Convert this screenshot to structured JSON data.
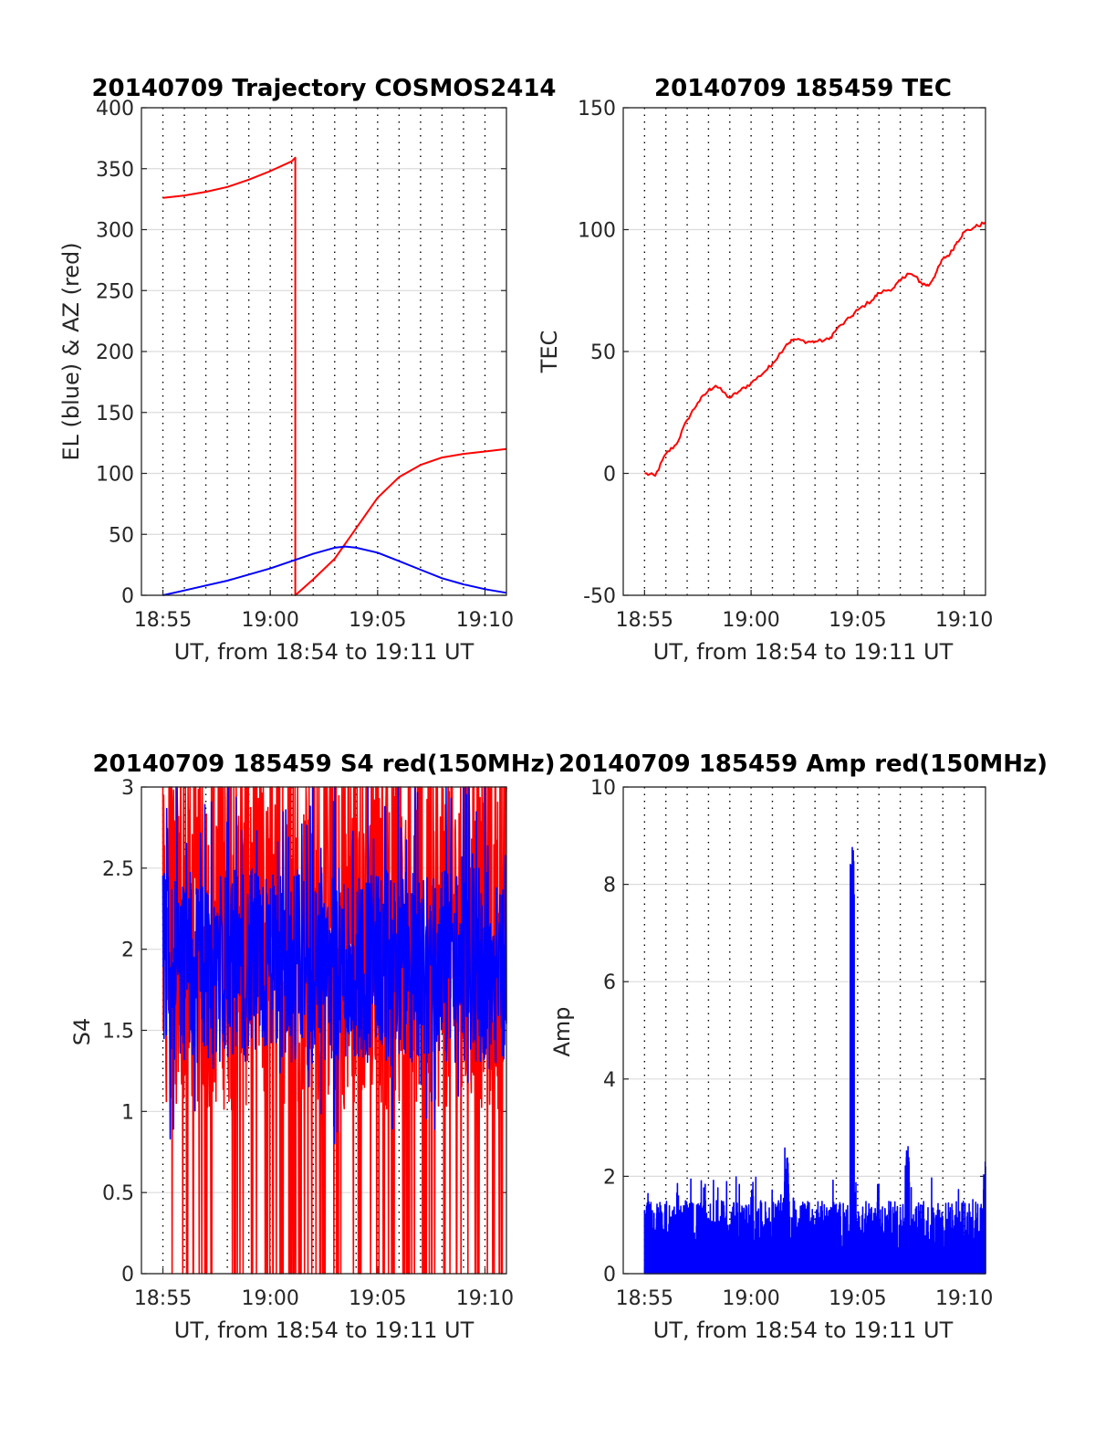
{
  "chart_data": [
    {
      "id": "trajectory",
      "type": "line",
      "title": "20140709 Trajectory COSMOS2414",
      "xlabel": "UT, from 18:54 to 19:11 UT",
      "ylabel": "EL (blue) & AZ (red)",
      "x_ticks": [
        "18:55",
        "19:00",
        "19:05",
        "19:10"
      ],
      "y_ticks": [
        "0",
        "50",
        "100",
        "150",
        "200",
        "250",
        "300",
        "350",
        "400"
      ],
      "xlim": [
        "18:54:00",
        "19:11:00"
      ],
      "ylim": [
        0,
        400
      ],
      "grid": true,
      "series": [
        {
          "color": "#ff0000",
          "x": [
            "18:55:00",
            "18:56:00",
            "18:57:00",
            "18:58:00",
            "18:59:00",
            "19:00:00",
            "19:01:00",
            "19:01:10",
            "19:01:10",
            "19:02:00",
            "19:03:00",
            "19:04:00",
            "19:05:00",
            "19:06:00",
            "19:07:00",
            "19:08:00",
            "19:09:00",
            "19:10:00",
            "19:11:00"
          ],
          "y": [
            326,
            328,
            331,
            335,
            341,
            348,
            356,
            359,
            0,
            13,
            30,
            55,
            80,
            97,
            107,
            113,
            116,
            118,
            120
          ]
        },
        {
          "color": "#0000ff",
          "x": [
            "18:55:00",
            "18:56:00",
            "18:57:00",
            "18:58:00",
            "18:59:00",
            "19:00:00",
            "19:01:00",
            "19:02:00",
            "19:03:00",
            "19:03:30",
            "19:04:00",
            "19:05:00",
            "19:06:00",
            "19:07:00",
            "19:08:00",
            "19:09:00",
            "19:10:00",
            "19:11:00"
          ],
          "y": [
            0,
            4,
            8,
            12,
            17,
            22,
            28,
            34,
            39,
            40,
            39,
            35,
            28,
            21,
            14,
            9,
            5,
            2
          ]
        }
      ]
    },
    {
      "id": "tec",
      "type": "line",
      "title": "20140709 185459 TEC",
      "xlabel": "UT, from 18:54 to 19:11 UT",
      "ylabel": "TEC",
      "x_ticks": [
        "18:55",
        "19:00",
        "19:05",
        "19:10"
      ],
      "y_ticks": [
        "-50",
        "0",
        "50",
        "100",
        "150"
      ],
      "xlim": [
        "18:54:00",
        "19:11:00"
      ],
      "ylim": [
        -50,
        150
      ],
      "grid": true,
      "series": [
        {
          "color": "#ff0000",
          "x": [
            "18:55:00",
            "18:55:30",
            "18:56:00",
            "18:56:30",
            "18:57:00",
            "18:57:30",
            "18:58:00",
            "18:58:20",
            "18:59:00",
            "18:59:30",
            "19:00:00",
            "19:00:40",
            "19:01:00",
            "19:01:40",
            "19:02:00",
            "19:02:40",
            "19:03:00",
            "19:03:40",
            "19:04:00",
            "19:04:40",
            "19:05:00",
            "19:05:40",
            "19:06:00",
            "19:06:40",
            "19:07:00",
            "19:07:20",
            "19:07:40",
            "19:08:00",
            "19:08:20",
            "19:08:40",
            "19:09:00",
            "19:09:20",
            "19:09:40",
            "19:10:00",
            "19:10:30",
            "19:11:00"
          ],
          "y": [
            0,
            -1,
            8,
            12,
            22,
            29,
            34,
            36,
            31,
            34,
            37,
            42,
            45,
            53,
            55,
            54,
            54,
            55,
            59,
            64,
            67,
            71,
            74,
            76,
            79,
            82,
            81,
            78,
            77,
            82,
            88,
            90,
            95,
            99,
            101,
            103
          ]
        }
      ]
    },
    {
      "id": "s4",
      "type": "line",
      "title": "20140709 185459 S4 red(150MHz)",
      "xlabel": "UT, from 18:54 to 19:11 UT",
      "ylabel": "S4",
      "x_ticks": [
        "18:55",
        "19:00",
        "19:05",
        "19:10"
      ],
      "y_ticks": [
        "0",
        "0.5",
        "1",
        "1.5",
        "2",
        "2.5",
        "3"
      ],
      "xlim": [
        "18:54:00",
        "19:11:00"
      ],
      "ylim": [
        0,
        3
      ],
      "grid": true,
      "series": [
        {
          "color": "#ff0000",
          "description_values": {
            "x_start": "18:55:00",
            "x_end": "19:11:00",
            "range": [
              0,
              3
            ]
          }
        },
        {
          "color": "#0000ff",
          "description_values": {
            "x_start": "18:55:00",
            "x_end": "19:11:00",
            "range": [
              0.75,
              3
            ]
          }
        }
      ]
    },
    {
      "id": "amp",
      "type": "line",
      "title": "20140709 185459 Amp red(150MHz)",
      "xlabel": "UT, from 18:54 to 19:11 UT",
      "ylabel": "Amp",
      "x_ticks": [
        "18:55",
        "19:00",
        "19:05",
        "19:10"
      ],
      "y_ticks": [
        "0",
        "2",
        "4",
        "6",
        "8",
        "10"
      ],
      "xlim": [
        "18:54:00",
        "19:11:00"
      ],
      "ylim": [
        0,
        10
      ],
      "grid": true,
      "series": [
        {
          "color": "#0000ff",
          "peaks": [
            {
              "x": "19:04:45",
              "y": 8.8
            },
            {
              "x": "19:07:20",
              "y": 2.8
            },
            {
              "x": "19:01:40",
              "y": 2.6
            },
            {
              "x": "19:11:00",
              "y": 2.4
            }
          ],
          "baseline_range": [
            0,
            1.8
          ]
        }
      ]
    }
  ]
}
